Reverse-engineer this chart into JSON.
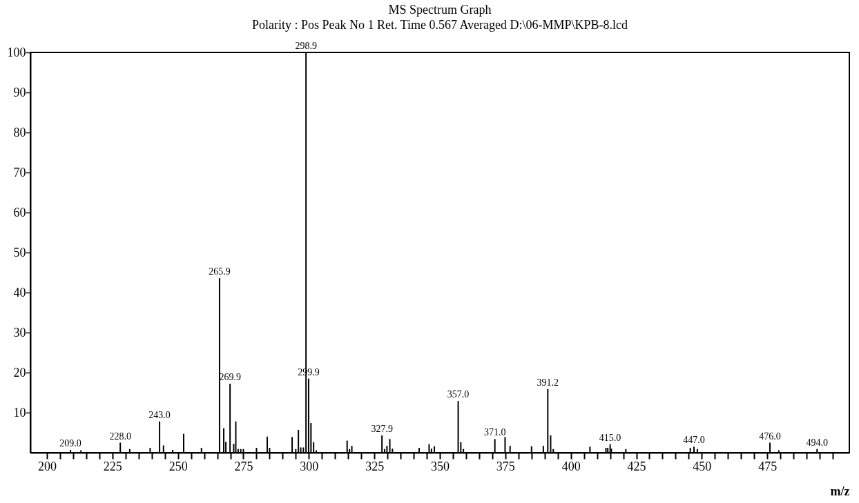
{
  "chart_data": {
    "type": "bar",
    "title": "MS Spectrum Graph",
    "subtitle": "Polarity : Pos    Peak No  1    Ret. Time 0.567   Averaged   D:\\06-MMP\\KPB-8.lcd",
    "xlabel": "m/z",
    "color": "#000000",
    "grid": false,
    "x": [
      209.0,
      213,
      228.0,
      231.6,
      239.4,
      243.0,
      244.5,
      248,
      252.2,
      259,
      265.9,
      267.5,
      268.3,
      269.9,
      271.3,
      272.1,
      273,
      274,
      275,
      280,
      284.1,
      285,
      293.6,
      295,
      296.0,
      296.9,
      297.9,
      298.9,
      299.9,
      300.8,
      301.8,
      302.8,
      314.6,
      315.5,
      316.4,
      327.9,
      328.9,
      329.8,
      330.9,
      331.9,
      342.1,
      345.9,
      346.8,
      347.9,
      357.0,
      358.0,
      359.0,
      371.0,
      374.9,
      376.8,
      385.0,
      389.5,
      391.2,
      392.3,
      393.3,
      407.3,
      413.4,
      414.1,
      415.0,
      415.5,
      421,
      445.6,
      447.0,
      448.3,
      476.0,
      479.4,
      494.0
    ],
    "values": [
      0.7,
      0.6,
      2.5,
      0.9,
      1.2,
      7.8,
      1.8,
      0.7,
      4.7,
      1.2,
      43.6,
      6.1,
      2.7,
      17.2,
      2.2,
      7.8,
      0.9,
      0.9,
      0.9,
      1.2,
      4.0,
      1.2,
      3.9,
      0.9,
      5.7,
      1.3,
      1.3,
      100,
      18.5,
      7.4,
      2.6,
      0.6,
      3.0,
      0.9,
      1.7,
      4.3,
      0.9,
      1.7,
      3.4,
      1.0,
      1.2,
      2.1,
      1.0,
      1.6,
      12.9,
      2.6,
      0.9,
      3.4,
      3.9,
      1.7,
      1.6,
      1.7,
      15.9,
      4.3,
      0.9,
      1.5,
      1.2,
      1.2,
      2.1,
      1.0,
      0.9,
      1.2,
      1.5,
      0.9,
      2.5,
      0.6,
      0.9
    ],
    "annotations": [
      {
        "text": "209.0",
        "x": 209.0,
        "y": 0.7
      },
      {
        "text": "228.0",
        "x": 228.0,
        "y": 2.5
      },
      {
        "text": "243.0",
        "x": 243.0,
        "y": 7.8
      },
      {
        "text": "265.9",
        "x": 265.9,
        "y": 43.6
      },
      {
        "text": "269.9",
        "x": 269.9,
        "y": 17.2
      },
      {
        "text": "298.9",
        "x": 298.9,
        "y": 100
      },
      {
        "text": "299.9",
        "x": 299.9,
        "y": 18.5
      },
      {
        "text": "327.9",
        "x": 327.9,
        "y": 4.3
      },
      {
        "text": "357.0",
        "x": 357.0,
        "y": 12.9
      },
      {
        "text": "371.0",
        "x": 371.0,
        "y": 3.4
      },
      {
        "text": "391.2",
        "x": 391.2,
        "y": 15.9
      },
      {
        "text": "415.0",
        "x": 415.0,
        "y": 2.1
      },
      {
        "text": "447.0",
        "x": 447.0,
        "y": 1.5
      },
      {
        "text": "476.0",
        "x": 476.0,
        "y": 2.5
      },
      {
        "text": "494.0",
        "x": 494.0,
        "y": 0.9
      }
    ],
    "xlim": [
      195,
      505
    ],
    "xticks": [
      200,
      {
        "value": 205,
        "label": null
      },
      {
        "value": 210,
        "label": null
      },
      {
        "value": 215,
        "label": null
      },
      {
        "value": 220,
        "label": null
      },
      225,
      {
        "value": 230,
        "label": null
      },
      {
        "value": 235,
        "label": null
      },
      {
        "value": 240,
        "label": null
      },
      {
        "value": 245,
        "label": null
      },
      250,
      {
        "value": 255,
        "label": null
      },
      {
        "value": 260,
        "label": null
      },
      {
        "value": 265,
        "label": null
      },
      {
        "value": 270,
        "label": null
      },
      275,
      {
        "value": 280,
        "label": null
      },
      {
        "value": 285,
        "label": null
      },
      {
        "value": 290,
        "label": null
      },
      {
        "value": 295,
        "label": null
      },
      300,
      {
        "value": 305,
        "label": null
      },
      {
        "value": 310,
        "label": null
      },
      {
        "value": 315,
        "label": null
      },
      {
        "value": 320,
        "label": null
      },
      325,
      {
        "value": 330,
        "label": null
      },
      {
        "value": 335,
        "label": null
      },
      {
        "value": 340,
        "label": null
      },
      {
        "value": 345,
        "label": null
      },
      350,
      {
        "value": 355,
        "label": null
      },
      {
        "value": 360,
        "label": null
      },
      {
        "value": 365,
        "label": null
      },
      {
        "value": 370,
        "label": null
      },
      375,
      {
        "value": 380,
        "label": null
      },
      {
        "value": 385,
        "label": null
      },
      {
        "value": 390,
        "label": null
      },
      {
        "value": 395,
        "label": null
      },
      400,
      {
        "value": 405,
        "label": null
      },
      {
        "value": 410,
        "label": null
      },
      {
        "value": 415,
        "label": null
      },
      {
        "value": 420,
        "label": null
      },
      425,
      {
        "value": 430,
        "label": null
      },
      {
        "value": 435,
        "label": null
      },
      {
        "value": 440,
        "label": null
      },
      {
        "value": 445,
        "label": null
      },
      450,
      {
        "value": 455,
        "label": null
      },
      {
        "value": 460,
        "label": null
      },
      {
        "value": 465,
        "label": null
      },
      {
        "value": 470,
        "label": null
      },
      475,
      {
        "value": 480,
        "label": null
      },
      {
        "value": 485,
        "label": null
      },
      {
        "value": 490,
        "label": null
      },
      {
        "value": 495,
        "label": null
      },
      {
        "value": 500,
        "label": null
      }
    ],
    "ylim": [
      0,
      100
    ],
    "yticks": [
      10,
      20,
      30,
      40,
      50,
      60,
      70,
      80,
      90,
      100
    ]
  }
}
